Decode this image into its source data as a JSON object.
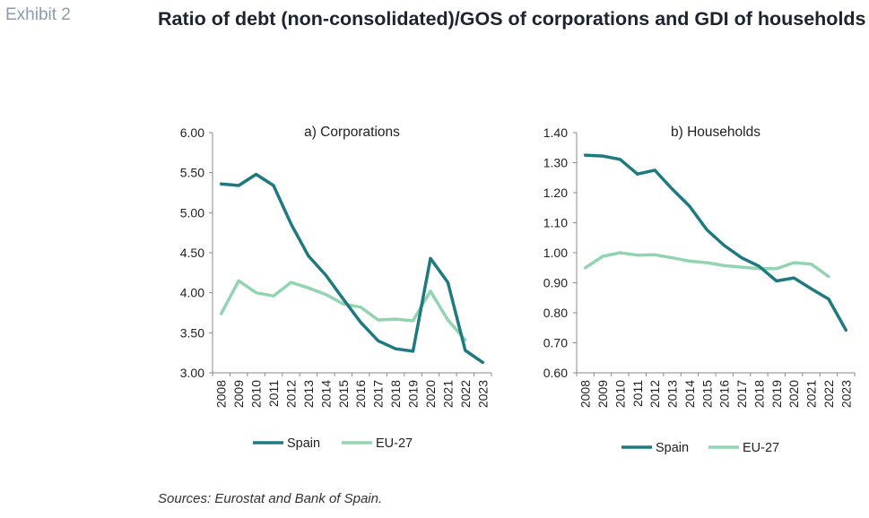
{
  "exhibit_label": "Exhibit 2",
  "title": "Ratio of debt (non-consolidated)/GOS of corporations and GDI of households",
  "source": "Sources: Eurostat and Bank of Spain.",
  "colors": {
    "spain": "#1f7a80",
    "eu27": "#93d4b0",
    "axis": "#888888"
  },
  "chart_data": [
    {
      "type": "line",
      "title": "a) Corporations",
      "categories": [
        "2008",
        "2009",
        "2010",
        "2011",
        "2012",
        "2013",
        "2014",
        "2015",
        "2016",
        "2017",
        "2018",
        "2019",
        "2020",
        "2021",
        "2022",
        "2023"
      ],
      "ylim": [
        3.0,
        6.0
      ],
      "yticks": [
        "3.00",
        "3.50",
        "4.00",
        "4.50",
        "5.00",
        "5.50",
        "6.00"
      ],
      "grid": false,
      "legend": "bottom",
      "series": [
        {
          "name": "Spain",
          "values": [
            5.36,
            5.34,
            5.48,
            5.34,
            4.86,
            4.46,
            4.22,
            3.92,
            3.63,
            3.4,
            3.3,
            3.27,
            4.43,
            4.13,
            3.28,
            3.13
          ]
        },
        {
          "name": "EU-27",
          "values": [
            3.74,
            4.15,
            4.0,
            3.96,
            4.13,
            4.06,
            3.98,
            3.86,
            3.82,
            3.66,
            3.67,
            3.65,
            4.02,
            3.66,
            3.41,
            null
          ]
        }
      ]
    },
    {
      "type": "line",
      "title": "b) Households",
      "categories": [
        "2008",
        "2009",
        "2010",
        "2011",
        "2012",
        "2013",
        "2014",
        "2015",
        "2016",
        "2017",
        "2018",
        "2019",
        "2020",
        "2021",
        "2022",
        "2023"
      ],
      "ylim": [
        0.6,
        1.4
      ],
      "yticks": [
        "0.60",
        "0.70",
        "0.80",
        "0.90",
        "1.00",
        "1.10",
        "1.20",
        "1.30",
        "1.40"
      ],
      "grid": false,
      "legend": "bottom",
      "series": [
        {
          "name": "Spain",
          "values": [
            1.325,
            1.322,
            1.311,
            1.262,
            1.275,
            1.212,
            1.155,
            1.076,
            1.024,
            0.983,
            0.955,
            0.906,
            0.916,
            0.88,
            0.846,
            0.742
          ]
        },
        {
          "name": "EU-27",
          "values": [
            0.95,
            0.988,
            1.0,
            0.992,
            0.993,
            0.983,
            0.972,
            0.967,
            0.957,
            0.952,
            0.947,
            0.947,
            0.967,
            0.962,
            0.921,
            null
          ]
        }
      ]
    }
  ]
}
